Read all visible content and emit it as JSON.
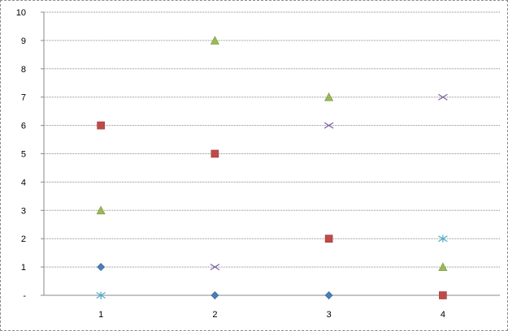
{
  "chart_data": {
    "type": "scatter",
    "title": "",
    "xlabel": "",
    "ylabel": "",
    "xlim": [
      0,
      4
    ],
    "ylim": [
      0,
      10
    ],
    "grid": "horizontal",
    "legend": "none",
    "x_ticks": [
      "1",
      "2",
      "3",
      "4"
    ],
    "y_ticks": [
      "-",
      "1",
      "2",
      "3",
      "4",
      "5",
      "6",
      "7",
      "8",
      "9",
      "10"
    ],
    "series": [
      {
        "marker": "diamond",
        "color": "#4a7ebb",
        "x": [
          1,
          2,
          3
        ],
        "y": [
          1,
          0,
          0
        ]
      },
      {
        "marker": "square",
        "color": "#be4b48",
        "x": [
          1,
          2,
          3,
          4
        ],
        "y": [
          6,
          5,
          2,
          0
        ]
      },
      {
        "marker": "triangle",
        "color": "#98b954",
        "x": [
          1,
          2,
          3,
          4
        ],
        "y": [
          3,
          9,
          7,
          1
        ]
      },
      {
        "marker": "x",
        "color": "#7d60a0",
        "x": [
          2,
          3,
          4
        ],
        "y": [
          1,
          6,
          7
        ]
      },
      {
        "marker": "star",
        "color": "#4bacc6",
        "x": [
          1,
          4
        ],
        "y": [
          0,
          2
        ]
      }
    ]
  }
}
